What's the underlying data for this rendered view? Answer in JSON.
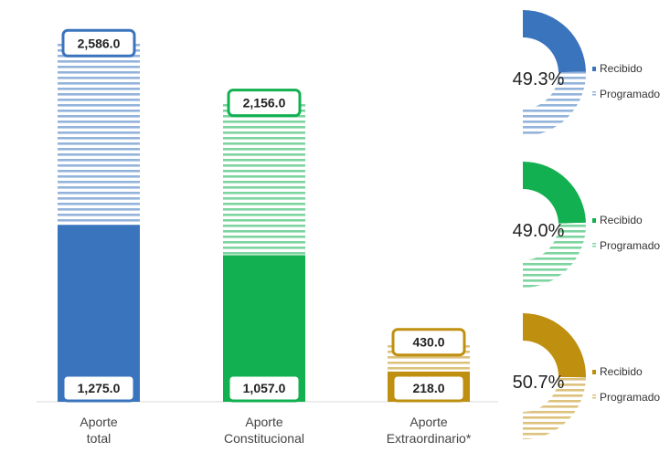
{
  "chart_data": [
    {
      "type": "bar",
      "categories": [
        {
          "line1": "Aporte",
          "line2": "total"
        },
        {
          "line1": "Aporte",
          "line2": "Constitucional"
        },
        {
          "line1": "Aporte",
          "line2": "Extraordinario*"
        }
      ],
      "series": [
        {
          "name": "Programado",
          "values": [
            2586.0,
            2156.0,
            430.0
          ],
          "labels": [
            "2,586.0",
            "2,156.0",
            "430.0"
          ],
          "pattern": "horizontal-stripes"
        },
        {
          "name": "Recibido",
          "values": [
            1275.0,
            1057.0,
            218.0
          ],
          "labels": [
            "1,275.0",
            "1,057.0",
            "218.0"
          ],
          "pattern": "solid"
        }
      ],
      "colors": [
        "#3a74bd",
        "#12b050",
        "#bf9010"
      ],
      "ylim": [
        0,
        2700
      ],
      "grid": false
    },
    {
      "type": "pie",
      "style": "half-donut",
      "charts": [
        {
          "percent": 49.3,
          "percent_label": "49.3%",
          "color": "#3a74bd",
          "legend": [
            "Recibido",
            "Programado"
          ]
        },
        {
          "percent": 49.0,
          "percent_label": "49.0%",
          "color": "#12b050",
          "legend": [
            "Recibido",
            "Programado"
          ]
        },
        {
          "percent": 50.7,
          "percent_label": "50.7%",
          "color": "#bf9010",
          "legend": [
            "Recibido",
            "Programado"
          ]
        }
      ]
    }
  ]
}
